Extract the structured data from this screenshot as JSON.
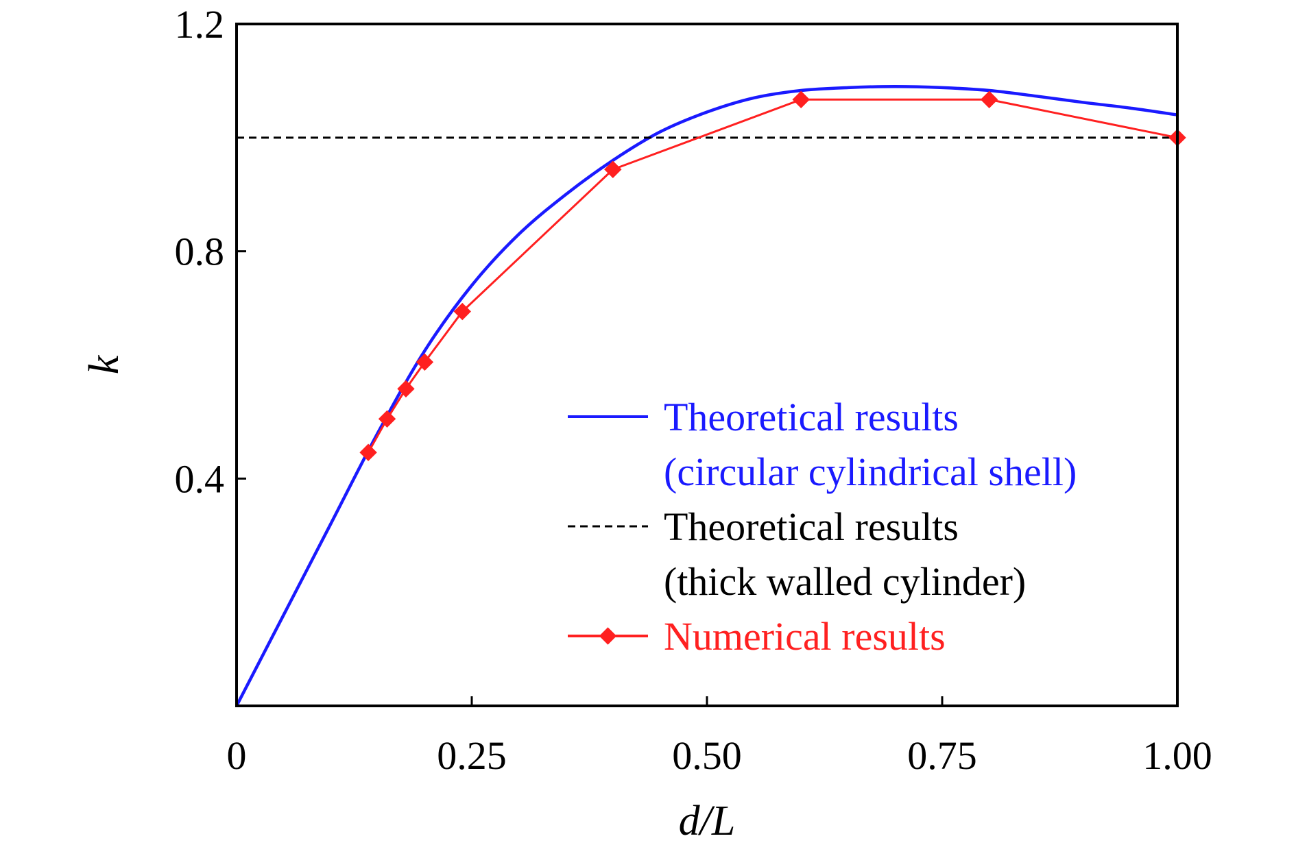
{
  "chart_data": {
    "type": "line",
    "title": "",
    "xlabel": "d/L",
    "ylabel": "k",
    "xlim": [
      0,
      1.0
    ],
    "ylim": [
      0,
      1.2
    ],
    "x_ticks": [
      {
        "value": 0,
        "label": "0"
      },
      {
        "value": 0.25,
        "label": "0.25"
      },
      {
        "value": 0.5,
        "label": "0.50"
      },
      {
        "value": 0.75,
        "label": "0.75"
      },
      {
        "value": 1.0,
        "label": "1.00"
      }
    ],
    "y_ticks": [
      {
        "value": 0.4,
        "label": "0.4"
      },
      {
        "value": 0.8,
        "label": "0.8"
      },
      {
        "value": 1.2,
        "label": "1.2"
      }
    ],
    "grid": false,
    "legend_position": "lower-right",
    "series": [
      {
        "name": "Theoretical results (circular cylindrical shell)",
        "legend_lines": [
          "Theoretical results",
          "(circular cylindrical shell)"
        ],
        "color": "#1a1aff",
        "style": "solid",
        "marker": "none",
        "x": [
          0,
          0.05,
          0.1,
          0.15,
          0.2,
          0.25,
          0.3,
          0.35,
          0.4,
          0.45,
          0.5,
          0.55,
          0.6,
          0.65,
          0.7,
          0.75,
          0.8,
          0.85,
          0.9,
          0.95,
          1.0
        ],
        "y": [
          0,
          0.16,
          0.32,
          0.48,
          0.625,
          0.74,
          0.83,
          0.9,
          0.96,
          1.01,
          1.045,
          1.07,
          1.083,
          1.088,
          1.09,
          1.088,
          1.083,
          1.073,
          1.062,
          1.052,
          1.04
        ]
      },
      {
        "name": "Theoretical results (thick walled cylinder)",
        "legend_lines": [
          "Theoretical results",
          "(thick walled cylinder)"
        ],
        "color": "#000000",
        "style": "dashed",
        "marker": "none",
        "x": [
          0.0,
          0.02,
          1.0
        ],
        "y": [
          1.0,
          1.0,
          1.0
        ]
      },
      {
        "name": "Numerical results",
        "legend_lines": [
          "Numerical results"
        ],
        "color": "#ff2020",
        "style": "solid",
        "marker": "diamond",
        "x": [
          0.14,
          0.16,
          0.18,
          0.2,
          0.24,
          0.4,
          0.6,
          0.8,
          1.0
        ],
        "y": [
          0.446,
          0.505,
          0.558,
          0.605,
          0.694,
          0.944,
          1.067,
          1.067,
          1.0
        ]
      }
    ]
  }
}
